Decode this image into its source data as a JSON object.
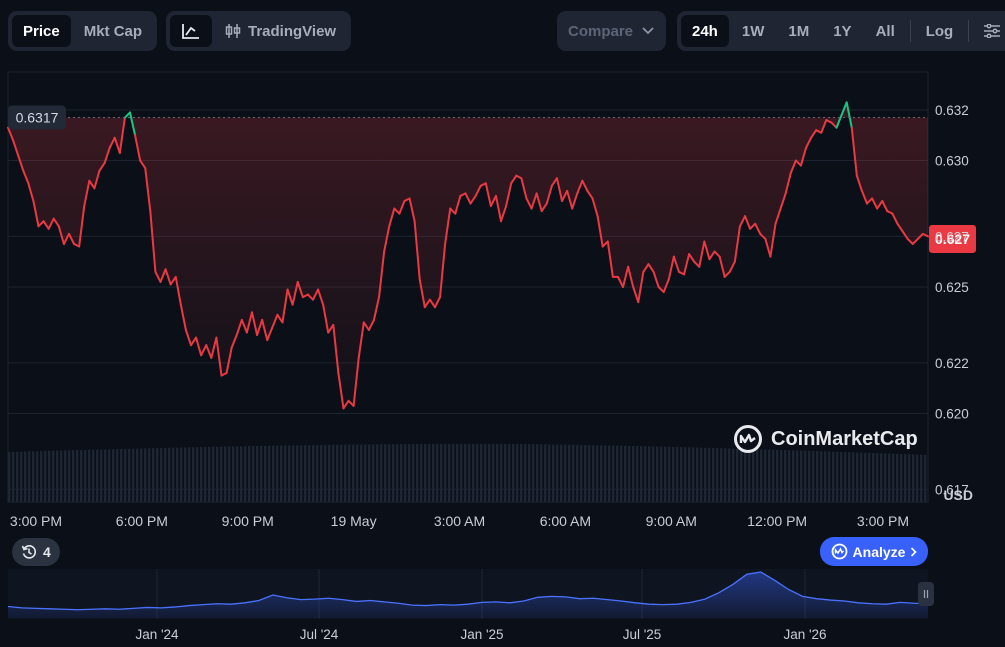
{
  "toolbar": {
    "price_label": "Price",
    "mktcap_label": "Mkt Cap",
    "tradingview_label": "TradingView",
    "compare_label": "Compare",
    "ranges": [
      "24h",
      "1W",
      "1M",
      "1Y",
      "All"
    ],
    "active_range": "24h",
    "log_label": "Log"
  },
  "watermark": "CoinMarketCap",
  "history_count": "4",
  "analyze_label": "Analyze",
  "colors": {
    "down": "#ea3943",
    "up": "#16c784",
    "accent": "#3861fb",
    "background": "#0b1018"
  },
  "chart_data": [
    {
      "type": "line",
      "x_ticks": [
        "3:00 PM",
        "6:00 PM",
        "9:00 PM",
        "19 May",
        "3:00 AM",
        "6:00 AM",
        "9:00 AM",
        "12:00 PM",
        "3:00 PM"
      ],
      "y_ticks": [
        "0.632",
        "0.630",
        "0.627",
        "0.625",
        "0.622",
        "0.620",
        "0.617"
      ],
      "ylim": [
        0.6165,
        0.6335
      ],
      "ylabel": "USD",
      "reference_label": "0.6317",
      "reference_value": 0.6317,
      "current_label": "0.627",
      "current_value": 0.6269,
      "series": [
        {
          "values": [
            0.6313,
            0.6308,
            0.6302,
            0.6296,
            0.6291,
            0.6284,
            0.6274,
            0.6276,
            0.6273,
            0.6277,
            0.6274,
            0.6267,
            0.6271,
            0.6267,
            0.6266,
            0.6282,
            0.6292,
            0.6289,
            0.6296,
            0.6299,
            0.6305,
            0.6309,
            0.6303,
            0.6317,
            0.6319,
            0.631,
            0.63,
            0.6297,
            0.628,
            0.6256,
            0.6252,
            0.6257,
            0.6251,
            0.6254,
            0.6243,
            0.6233,
            0.6227,
            0.623,
            0.6223,
            0.6227,
            0.6222,
            0.623,
            0.6215,
            0.6216,
            0.6226,
            0.6231,
            0.6237,
            0.6232,
            0.624,
            0.6231,
            0.6237,
            0.6229,
            0.6234,
            0.6239,
            0.6236,
            0.6249,
            0.6243,
            0.6252,
            0.6246,
            0.6247,
            0.6245,
            0.6249,
            0.6243,
            0.6232,
            0.6235,
            0.6216,
            0.6202,
            0.6205,
            0.6203,
            0.6222,
            0.6236,
            0.6233,
            0.6237,
            0.6246,
            0.6264,
            0.6274,
            0.6281,
            0.6279,
            0.6284,
            0.6285,
            0.6276,
            0.6253,
            0.6242,
            0.6245,
            0.6242,
            0.6246,
            0.6267,
            0.6281,
            0.6279,
            0.6286,
            0.6287,
            0.6283,
            0.6286,
            0.629,
            0.6291,
            0.6282,
            0.6286,
            0.6276,
            0.6282,
            0.6291,
            0.6294,
            0.6293,
            0.6285,
            0.6281,
            0.6287,
            0.628,
            0.6283,
            0.629,
            0.6293,
            0.6284,
            0.6288,
            0.6281,
            0.6287,
            0.6292,
            0.6288,
            0.6285,
            0.6278,
            0.6266,
            0.6268,
            0.6254,
            0.6254,
            0.625,
            0.6258,
            0.625,
            0.6244,
            0.6256,
            0.6259,
            0.6256,
            0.625,
            0.6248,
            0.6253,
            0.6262,
            0.6256,
            0.6255,
            0.6263,
            0.626,
            0.6258,
            0.6268,
            0.6261,
            0.6264,
            0.6262,
            0.6254,
            0.6256,
            0.626,
            0.6274,
            0.6278,
            0.6273,
            0.6275,
            0.6271,
            0.6269,
            0.6262,
            0.6275,
            0.6281,
            0.6287,
            0.6295,
            0.63,
            0.6298,
            0.6305,
            0.6309,
            0.6312,
            0.6311,
            0.6316,
            0.6315,
            0.6313,
            0.6318,
            0.6323,
            0.6313,
            0.6294,
            0.6288,
            0.6283,
            0.6285,
            0.6281,
            0.6284,
            0.628,
            0.6279,
            0.6275,
            0.6272,
            0.6269,
            0.6267,
            0.6269,
            0.6271,
            0.627
          ]
        }
      ]
    },
    {
      "type": "area",
      "x_ticks": [
        "Jan '24",
        "Jul '24",
        "Jan '25",
        "Jul '25",
        "Jan '26"
      ],
      "series": [
        {
          "values": [
            0.25,
            0.22,
            0.21,
            0.2,
            0.19,
            0.18,
            0.19,
            0.2,
            0.19,
            0.21,
            0.23,
            0.22,
            0.24,
            0.27,
            0.29,
            0.31,
            0.3,
            0.33,
            0.38,
            0.5,
            0.44,
            0.4,
            0.41,
            0.43,
            0.4,
            0.36,
            0.38,
            0.35,
            0.32,
            0.28,
            0.27,
            0.29,
            0.28,
            0.3,
            0.34,
            0.35,
            0.33,
            0.37,
            0.45,
            0.47,
            0.46,
            0.42,
            0.43,
            0.4,
            0.37,
            0.33,
            0.3,
            0.29,
            0.3,
            0.34,
            0.41,
            0.55,
            0.73,
            0.95,
            1.0,
            0.82,
            0.62,
            0.47,
            0.42,
            0.39,
            0.37,
            0.33,
            0.31,
            0.3,
            0.34,
            0.32,
            0.31
          ]
        }
      ]
    }
  ]
}
